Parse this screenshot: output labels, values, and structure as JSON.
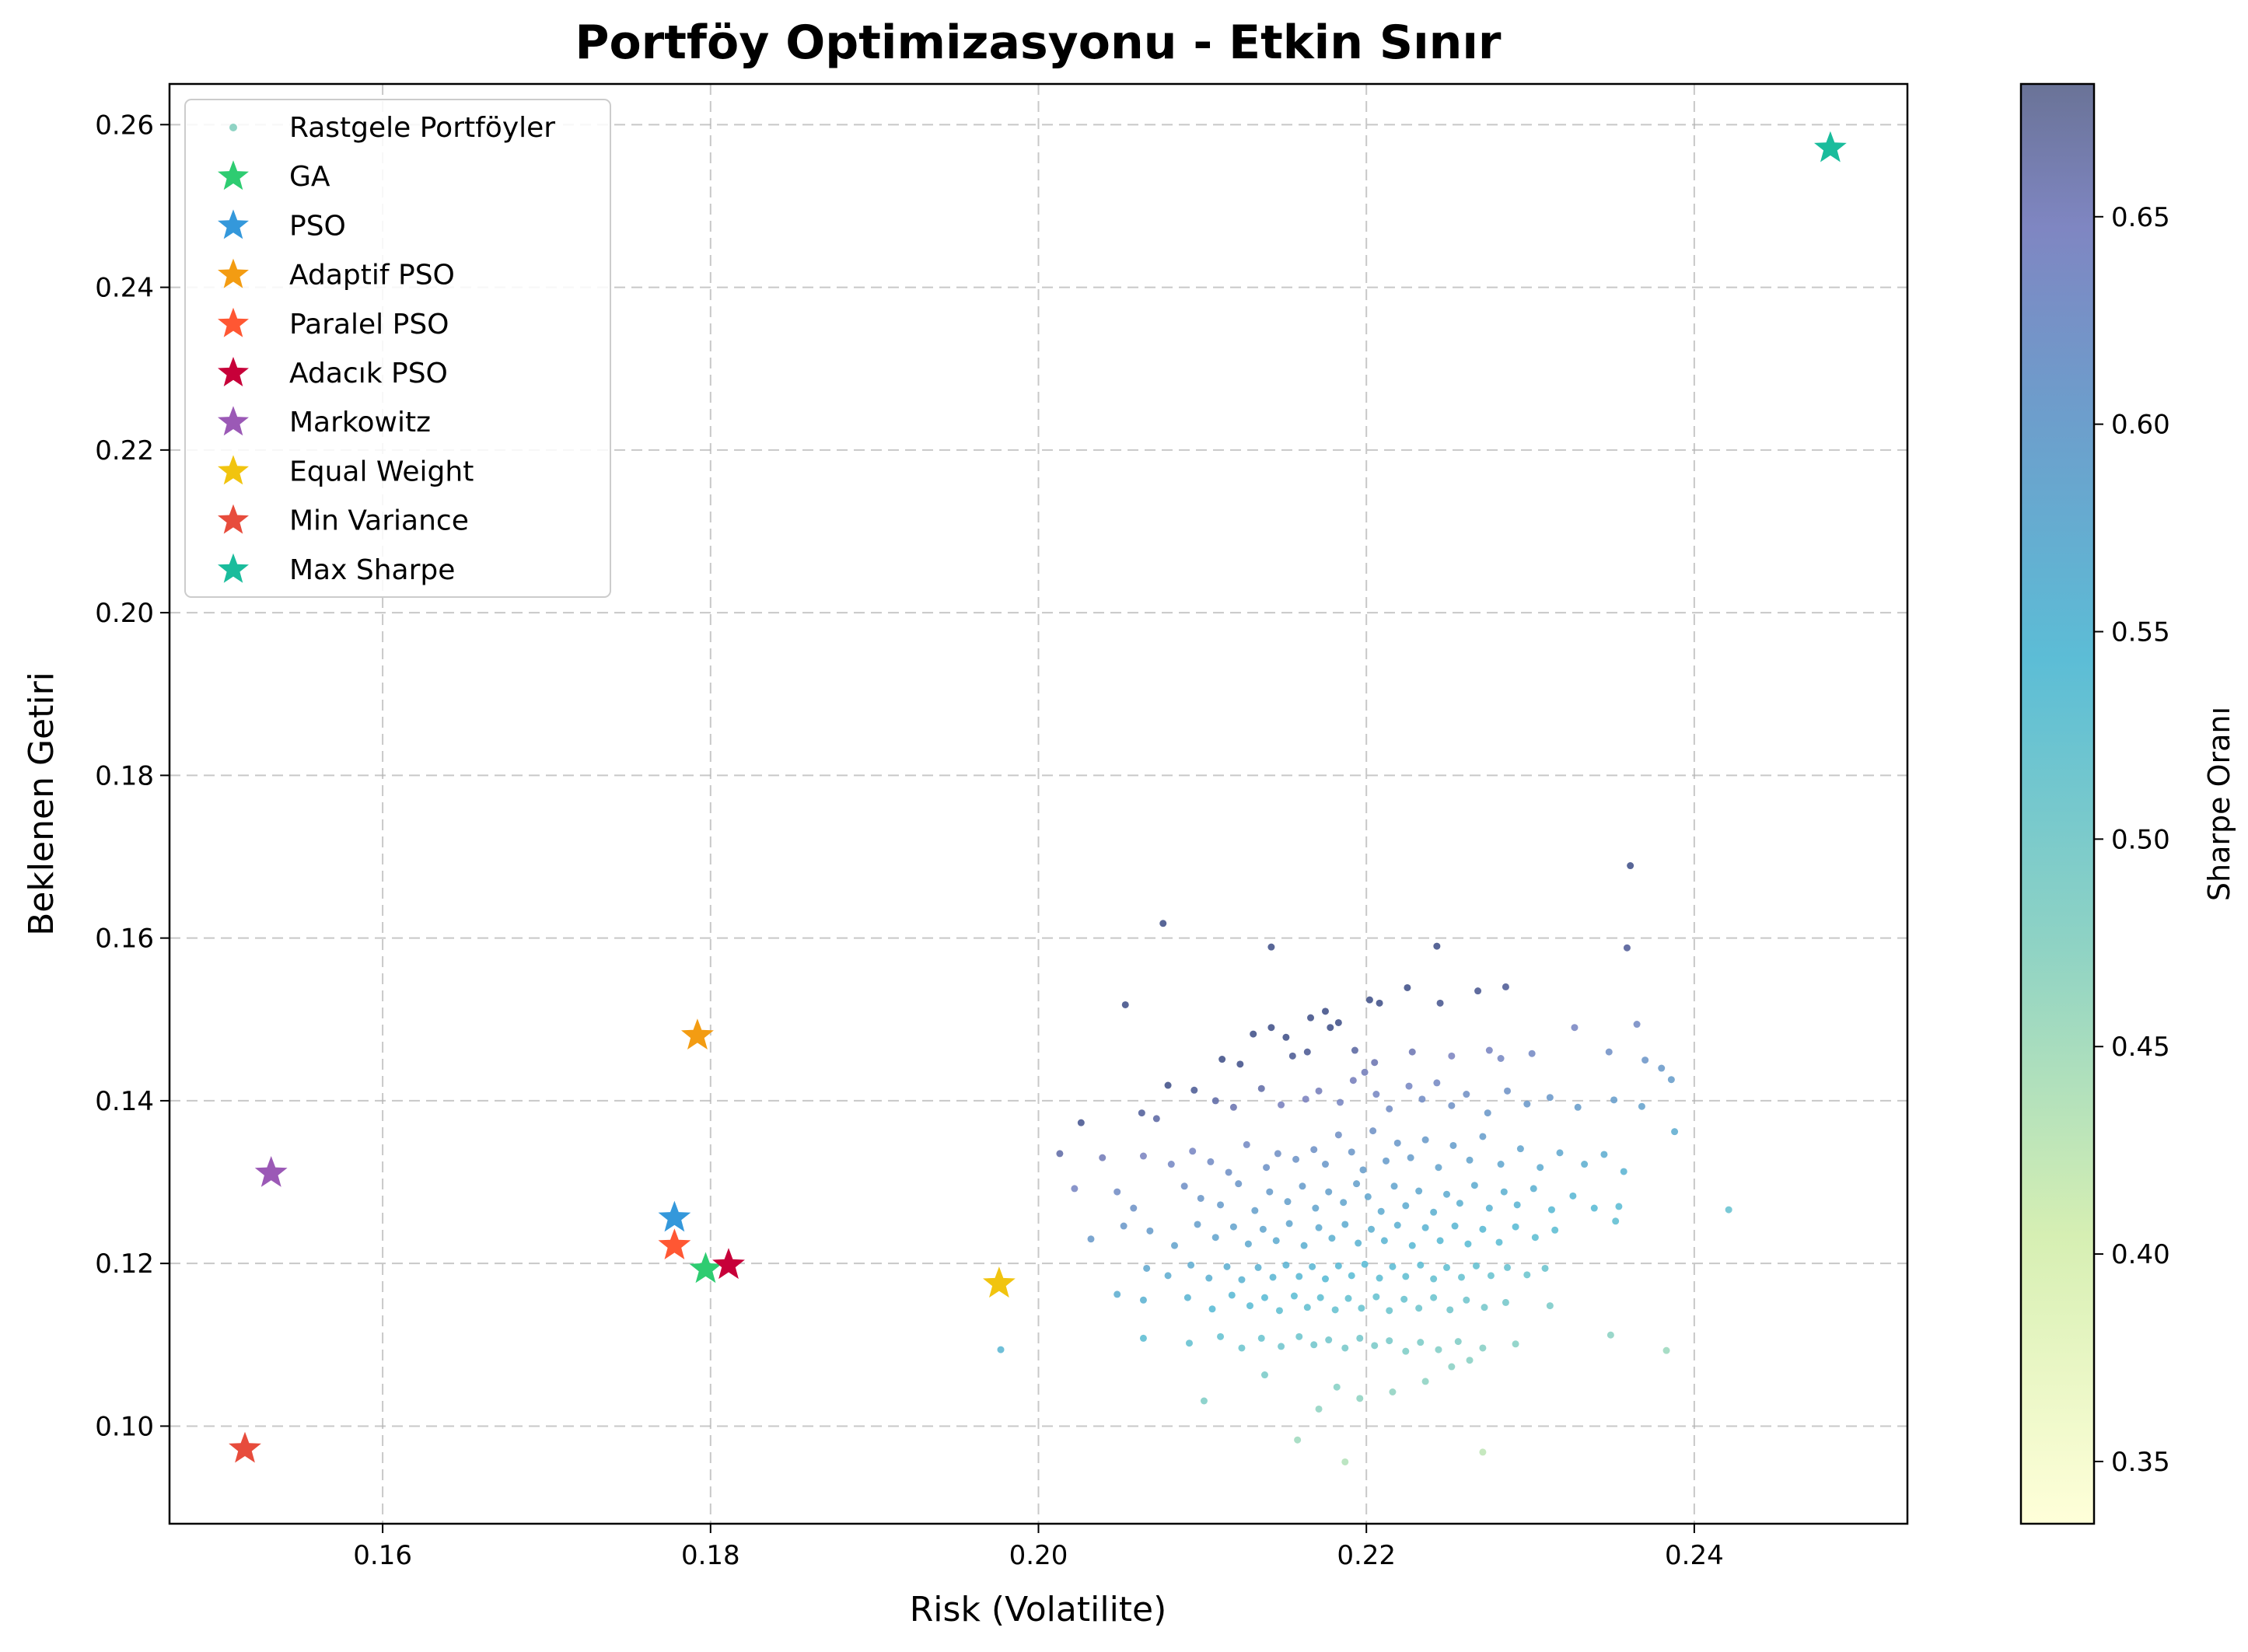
{
  "chart_data": {
    "type": "scatter",
    "title": "Portföy Optimizasyonu - Etkin Sınır",
    "xlabel": "Risk (Volatilite)",
    "ylabel": "Beklenen Getiri",
    "xlim": [
      0.147,
      0.253
    ],
    "ylim": [
      0.088,
      0.265
    ],
    "x_ticks": [
      "0.16",
      "0.18",
      "0.20",
      "0.22",
      "0.24"
    ],
    "x_tick_values": [
      0.16,
      0.18,
      0.2,
      0.22,
      0.24
    ],
    "y_ticks": [
      "0.10",
      "0.12",
      "0.14",
      "0.16",
      "0.18",
      "0.20",
      "0.22",
      "0.24",
      "0.26"
    ],
    "y_tick_values": [
      0.1,
      0.12,
      0.14,
      0.16,
      0.18,
      0.2,
      0.22,
      0.24,
      0.26
    ],
    "grid": true,
    "legend_position": "top-left",
    "colorbar": {
      "label": "Sharpe Oranı",
      "range": [
        0.335,
        0.682
      ],
      "ticks": [
        "0.35",
        "0.40",
        "0.45",
        "0.50",
        "0.55",
        "0.60",
        "0.65"
      ],
      "tick_values": [
        0.35,
        0.4,
        0.45,
        0.5,
        0.55,
        0.6,
        0.65
      ],
      "colormap": "YlGnBu"
    },
    "scatter_series": {
      "name": "Rastgele Portföyler",
      "marker_color": "#8fd3c4",
      "points": [
        [
          0.2076,
          0.1618
        ],
        [
          0.2361,
          0.1689
        ],
        [
          0.2142,
          0.1589
        ],
        [
          0.2243,
          0.159
        ],
        [
          0.2359,
          0.1588
        ],
        [
          0.2053,
          0.1518
        ],
        [
          0.2225,
          0.1539
        ],
        [
          0.2285,
          0.154
        ],
        [
          0.2268,
          0.1535
        ],
        [
          0.2202,
          0.1524
        ],
        [
          0.2208,
          0.152
        ],
        [
          0.2245,
          0.152
        ],
        [
          0.2175,
          0.151
        ],
        [
          0.2166,
          0.1502
        ],
        [
          0.2178,
          0.149
        ],
        [
          0.2183,
          0.1496
        ],
        [
          0.2131,
          0.1482
        ],
        [
          0.2142,
          0.149
        ],
        [
          0.2151,
          0.1478
        ],
        [
          0.2365,
          0.1494
        ],
        [
          0.2327,
          0.149
        ],
        [
          0.2079,
          0.1419
        ],
        [
          0.2112,
          0.1451
        ],
        [
          0.2123,
          0.1445
        ],
        [
          0.2155,
          0.1455
        ],
        [
          0.2164,
          0.146
        ],
        [
          0.2193,
          0.1462
        ],
        [
          0.2205,
          0.1447
        ],
        [
          0.2228,
          0.146
        ],
        [
          0.2252,
          0.1455
        ],
        [
          0.2275,
          0.1462
        ],
        [
          0.2282,
          0.1452
        ],
        [
          0.2301,
          0.1458
        ],
        [
          0.2348,
          0.146
        ],
        [
          0.237,
          0.145
        ],
        [
          0.238,
          0.144
        ],
        [
          0.2386,
          0.1426
        ],
        [
          0.2026,
          0.1373
        ],
        [
          0.2063,
          0.1385
        ],
        [
          0.2072,
          0.1378
        ],
        [
          0.2095,
          0.1413
        ],
        [
          0.2108,
          0.14
        ],
        [
          0.2119,
          0.1392
        ],
        [
          0.2136,
          0.1415
        ],
        [
          0.2148,
          0.1395
        ],
        [
          0.2163,
          0.1402
        ],
        [
          0.2171,
          0.1412
        ],
        [
          0.2184,
          0.1398
        ],
        [
          0.2192,
          0.1425
        ],
        [
          0.2199,
          0.1435
        ],
        [
          0.2206,
          0.1408
        ],
        [
          0.2214,
          0.139
        ],
        [
          0.2226,
          0.1418
        ],
        [
          0.2234,
          0.1402
        ],
        [
          0.2243,
          0.1422
        ],
        [
          0.2252,
          0.1394
        ],
        [
          0.2261,
          0.1408
        ],
        [
          0.2274,
          0.1385
        ],
        [
          0.2286,
          0.1412
        ],
        [
          0.2298,
          0.1396
        ],
        [
          0.2312,
          0.1404
        ],
        [
          0.2329,
          0.1392
        ],
        [
          0.2351,
          0.1401
        ],
        [
          0.2368,
          0.1393
        ],
        [
          0.2388,
          0.1362
        ],
        [
          0.2013,
          0.1335
        ],
        [
          0.2039,
          0.133
        ],
        [
          0.2064,
          0.1332
        ],
        [
          0.2081,
          0.1322
        ],
        [
          0.2094,
          0.1338
        ],
        [
          0.2105,
          0.1325
        ],
        [
          0.2116,
          0.1312
        ],
        [
          0.2127,
          0.1346
        ],
        [
          0.2139,
          0.1318
        ],
        [
          0.2146,
          0.1335
        ],
        [
          0.2157,
          0.1328
        ],
        [
          0.2168,
          0.134
        ],
        [
          0.2175,
          0.1322
        ],
        [
          0.2183,
          0.1358
        ],
        [
          0.2191,
          0.1337
        ],
        [
          0.2198,
          0.1315
        ],
        [
          0.2204,
          0.1363
        ],
        [
          0.2212,
          0.1326
        ],
        [
          0.2219,
          0.1348
        ],
        [
          0.2227,
          0.133
        ],
        [
          0.2236,
          0.1352
        ],
        [
          0.2244,
          0.1318
        ],
        [
          0.2253,
          0.1345
        ],
        [
          0.2263,
          0.1327
        ],
        [
          0.2271,
          0.1356
        ],
        [
          0.2282,
          0.1322
        ],
        [
          0.2294,
          0.1341
        ],
        [
          0.2306,
          0.1318
        ],
        [
          0.2318,
          0.1336
        ],
        [
          0.2333,
          0.1322
        ],
        [
          0.2345,
          0.1334
        ],
        [
          0.2357,
          0.1313
        ],
        [
          0.2022,
          0.1292
        ],
        [
          0.2048,
          0.1288
        ],
        [
          0.2058,
          0.1268
        ],
        [
          0.2089,
          0.1295
        ],
        [
          0.2099,
          0.128
        ],
        [
          0.2111,
          0.1272
        ],
        [
          0.2122,
          0.1298
        ],
        [
          0.2132,
          0.1265
        ],
        [
          0.2141,
          0.1288
        ],
        [
          0.2152,
          0.1276
        ],
        [
          0.2161,
          0.1295
        ],
        [
          0.2169,
          0.1268
        ],
        [
          0.2177,
          0.1288
        ],
        [
          0.2186,
          0.1275
        ],
        [
          0.2194,
          0.1298
        ],
        [
          0.2201,
          0.1282
        ],
        [
          0.2209,
          0.1264
        ],
        [
          0.2217,
          0.1295
        ],
        [
          0.2224,
          0.1271
        ],
        [
          0.2232,
          0.1289
        ],
        [
          0.2241,
          0.1263
        ],
        [
          0.2249,
          0.1285
        ],
        [
          0.2257,
          0.1274
        ],
        [
          0.2266,
          0.1296
        ],
        [
          0.2275,
          0.1268
        ],
        [
          0.2284,
          0.1288
        ],
        [
          0.2292,
          0.1272
        ],
        [
          0.2302,
          0.1292
        ],
        [
          0.2313,
          0.1266
        ],
        [
          0.2326,
          0.1283
        ],
        [
          0.2339,
          0.1268
        ],
        [
          0.2354,
          0.127
        ],
        [
          0.2421,
          0.1266
        ],
        [
          0.2032,
          0.123
        ],
        [
          0.2052,
          0.1246
        ],
        [
          0.2068,
          0.124
        ],
        [
          0.2083,
          0.1222
        ],
        [
          0.2097,
          0.1248
        ],
        [
          0.2108,
          0.1232
        ],
        [
          0.2119,
          0.1245
        ],
        [
          0.2128,
          0.1224
        ],
        [
          0.2137,
          0.1242
        ],
        [
          0.2145,
          0.1228
        ],
        [
          0.2153,
          0.1249
        ],
        [
          0.2162,
          0.1222
        ],
        [
          0.2171,
          0.1244
        ],
        [
          0.2179,
          0.1231
        ],
        [
          0.2187,
          0.1248
        ],
        [
          0.2195,
          0.1225
        ],
        [
          0.2203,
          0.1242
        ],
        [
          0.2211,
          0.1228
        ],
        [
          0.2219,
          0.1247
        ],
        [
          0.2228,
          0.1222
        ],
        [
          0.2236,
          0.1244
        ],
        [
          0.2245,
          0.1228
        ],
        [
          0.2254,
          0.1246
        ],
        [
          0.2262,
          0.1224
        ],
        [
          0.2271,
          0.1242
        ],
        [
          0.2281,
          0.1226
        ],
        [
          0.2291,
          0.1245
        ],
        [
          0.2303,
          0.1232
        ],
        [
          0.2315,
          0.1241
        ],
        [
          0.2352,
          0.1252
        ],
        [
          0.2066,
          0.1194
        ],
        [
          0.2079,
          0.1185
        ],
        [
          0.2093,
          0.1198
        ],
        [
          0.2104,
          0.1182
        ],
        [
          0.2115,
          0.1196
        ],
        [
          0.2124,
          0.118
        ],
        [
          0.2134,
          0.1195
        ],
        [
          0.2143,
          0.1183
        ],
        [
          0.2151,
          0.1198
        ],
        [
          0.2159,
          0.1184
        ],
        [
          0.2167,
          0.1196
        ],
        [
          0.2175,
          0.1181
        ],
        [
          0.2183,
          0.1197
        ],
        [
          0.2191,
          0.1185
        ],
        [
          0.2199,
          0.1199
        ],
        [
          0.2208,
          0.1182
        ],
        [
          0.2216,
          0.1196
        ],
        [
          0.2224,
          0.1184
        ],
        [
          0.2233,
          0.1198
        ],
        [
          0.2241,
          0.1181
        ],
        [
          0.2249,
          0.1195
        ],
        [
          0.2258,
          0.1183
        ],
        [
          0.2267,
          0.1197
        ],
        [
          0.2276,
          0.1185
        ],
        [
          0.2286,
          0.1195
        ],
        [
          0.2298,
          0.1186
        ],
        [
          0.2309,
          0.1194
        ],
        [
          0.2048,
          0.1162
        ],
        [
          0.2064,
          0.1155
        ],
        [
          0.2091,
          0.1158
        ],
        [
          0.2106,
          0.1144
        ],
        [
          0.2118,
          0.1161
        ],
        [
          0.2129,
          0.1148
        ],
        [
          0.2138,
          0.1158
        ],
        [
          0.2147,
          0.1142
        ],
        [
          0.2156,
          0.116
        ],
        [
          0.2164,
          0.1146
        ],
        [
          0.2172,
          0.1158
        ],
        [
          0.2181,
          0.1143
        ],
        [
          0.2189,
          0.1157
        ],
        [
          0.2197,
          0.1145
        ],
        [
          0.2206,
          0.1159
        ],
        [
          0.2214,
          0.1142
        ],
        [
          0.2223,
          0.1156
        ],
        [
          0.2232,
          0.1145
        ],
        [
          0.2241,
          0.1158
        ],
        [
          0.2251,
          0.1143
        ],
        [
          0.2261,
          0.1155
        ],
        [
          0.2272,
          0.1146
        ],
        [
          0.2285,
          0.1152
        ],
        [
          0.2312,
          0.1148
        ],
        [
          0.2064,
          0.1108
        ],
        [
          0.2092,
          0.1102
        ],
        [
          0.2111,
          0.111
        ],
        [
          0.2124,
          0.1096
        ],
        [
          0.2136,
          0.1108
        ],
        [
          0.2148,
          0.1098
        ],
        [
          0.2159,
          0.111
        ],
        [
          0.2168,
          0.11
        ],
        [
          0.2177,
          0.1106
        ],
        [
          0.2187,
          0.1096
        ],
        [
          0.2196,
          0.1108
        ],
        [
          0.2205,
          0.1099
        ],
        [
          0.2214,
          0.1105
        ],
        [
          0.2224,
          0.1092
        ],
        [
          0.2233,
          0.1103
        ],
        [
          0.2244,
          0.1094
        ],
        [
          0.2256,
          0.1104
        ],
        [
          0.2271,
          0.1096
        ],
        [
          0.2291,
          0.1101
        ],
        [
          0.2349,
          0.1112
        ],
        [
          0.2383,
          0.1093
        ],
        [
          0.1977,
          0.1094
        ],
        [
          0.2101,
          0.1031
        ],
        [
          0.2138,
          0.1063
        ],
        [
          0.2171,
          0.1021
        ],
        [
          0.2196,
          0.1034
        ],
        [
          0.2216,
          0.1042
        ],
        [
          0.2236,
          0.1055
        ],
        [
          0.2252,
          0.1073
        ],
        [
          0.2158,
          0.0983
        ],
        [
          0.2187,
          0.0956
        ],
        [
          0.2271,
          0.0968
        ],
        [
          0.2182,
          0.1048
        ],
        [
          0.2263,
          0.1081
        ]
      ]
    },
    "named_portfolios": [
      {
        "name": "GA",
        "x": 0.1797,
        "y": 0.1193,
        "color": "#2ecc71"
      },
      {
        "name": "PSO",
        "x": 0.1778,
        "y": 0.1256,
        "color": "#3498db"
      },
      {
        "name": "Adaptif PSO",
        "x": 0.1792,
        "y": 0.148,
        "color": "#f39c12"
      },
      {
        "name": "Paralel PSO",
        "x": 0.1778,
        "y": 0.1222,
        "color": "#ff5733"
      },
      {
        "name": "Adacık PSO",
        "x": 0.1811,
        "y": 0.1198,
        "color": "#c70039"
      },
      {
        "name": "Markowitz",
        "x": 0.1532,
        "y": 0.1311,
        "color": "#9b59b6"
      },
      {
        "name": "Equal Weight",
        "x": 0.1976,
        "y": 0.1175,
        "color": "#f1c40f"
      },
      {
        "name": "Min Variance",
        "x": 0.1516,
        "y": 0.0972,
        "color": "#e74c3c"
      },
      {
        "name": "Max Sharpe",
        "x": 0.2483,
        "y": 0.2571,
        "color": "#1abc9c"
      }
    ]
  }
}
